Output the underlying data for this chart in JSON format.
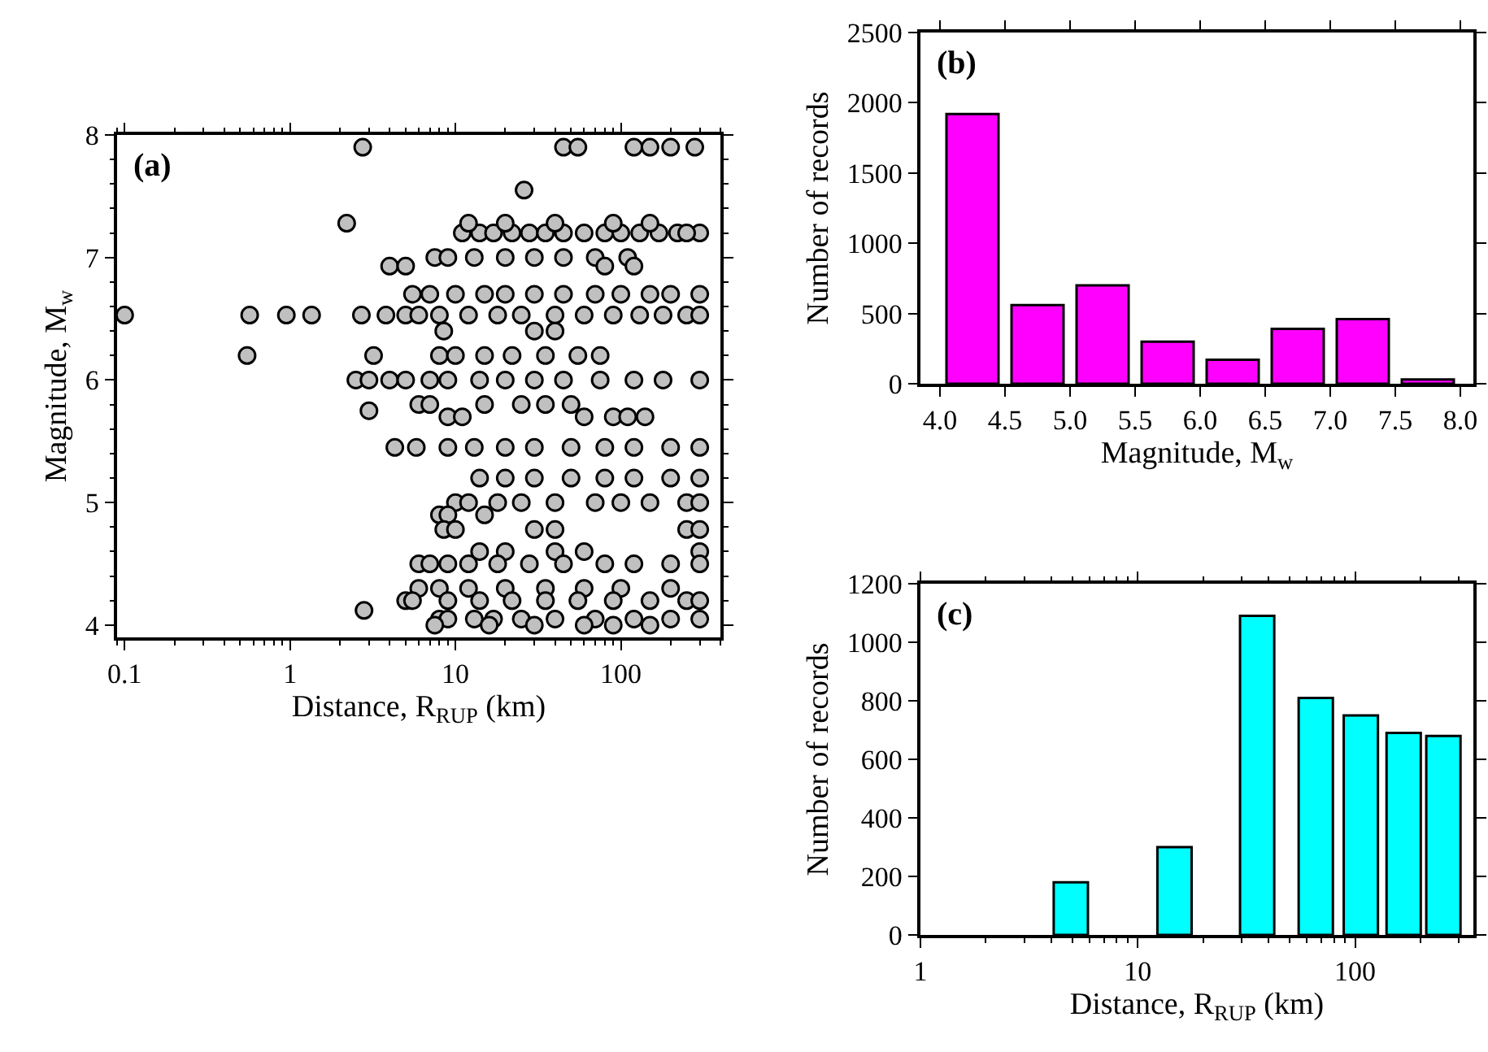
{
  "chart_data": [
    {
      "type": "scatter",
      "annotations": [
        "(a)"
      ],
      "xlabel": "Distance, R$_{RUP}$ (km)",
      "ylabel": "Magnitude, M$_{w}$",
      "log": "x",
      "marker": "circle",
      "xlim": [
        0.09,
        400
      ],
      "xticks": [
        0.1,
        1,
        10,
        100
      ],
      "ylim": [
        3.9,
        8
      ],
      "yticks": [
        4,
        5,
        6,
        7,
        8
      ],
      "series": [
        {
          "color": "#c0c0c0",
          "x": [
            0.1,
            0.55,
            0.57,
            0.95,
            1.35,
            2.7,
            2.2,
            2.75,
            2.8,
            3.0,
            4.3,
            5.8,
            4.0,
            5.0,
            3.8,
            26,
            45,
            55,
            120,
            150,
            200,
            280,
            11,
            14,
            17,
            22,
            28,
            35,
            45,
            60,
            80,
            100,
            130,
            170,
            220,
            300,
            12,
            20,
            40,
            90,
            150,
            250,
            7.5,
            9,
            13,
            20,
            30,
            45,
            70,
            110,
            80,
            120,
            5.5,
            7,
            10,
            15,
            20,
            30,
            45,
            70,
            100,
            150,
            200,
            300,
            5,
            6,
            8,
            12,
            18,
            25,
            40,
            60,
            90,
            130,
            180,
            250,
            300,
            8.5,
            30,
            40,
            3.2,
            8,
            10,
            15,
            22,
            35,
            55,
            75,
            2.5,
            3,
            4,
            5,
            7,
            9,
            14,
            20,
            30,
            45,
            75,
            120,
            180,
            300,
            6,
            7,
            15,
            25,
            35,
            50,
            9,
            11,
            60,
            90,
            110,
            140,
            9,
            13,
            20,
            30,
            50,
            80,
            120,
            200,
            300,
            14,
            20,
            30,
            50,
            80,
            120,
            200,
            300,
            10,
            12,
            18,
            25,
            40,
            70,
            100,
            150,
            250,
            300,
            8,
            9,
            15,
            8.5,
            10,
            30,
            40,
            250,
            300,
            14,
            20,
            40,
            60,
            300,
            6,
            7,
            9,
            12,
            18,
            28,
            45,
            80,
            120,
            200,
            300,
            6,
            8,
            12,
            20,
            35,
            60,
            100,
            200,
            5,
            5.5,
            9,
            14,
            22,
            35,
            55,
            90,
            150,
            250,
            300,
            8,
            9,
            13,
            17,
            25,
            40,
            70,
            120,
            200,
            300,
            7.5,
            16,
            30,
            60,
            90,
            150
          ],
          "values": [
            6.53,
            6.2,
            6.53,
            6.53,
            6.53,
            6.53,
            7.28,
            7.9,
            4.12,
            5.75,
            5.45,
            5.45,
            6.93,
            6.93,
            6.53,
            7.55,
            7.9,
            7.9,
            7.9,
            7.9,
            7.9,
            7.9,
            7.2,
            7.2,
            7.2,
            7.2,
            7.2,
            7.2,
            7.2,
            7.2,
            7.2,
            7.2,
            7.2,
            7.2,
            7.2,
            7.2,
            7.28,
            7.28,
            7.28,
            7.28,
            7.28,
            7.2,
            7.0,
            7.0,
            7.0,
            7.0,
            7.0,
            7.0,
            7.0,
            7.0,
            6.93,
            6.93,
            6.7,
            6.7,
            6.7,
            6.7,
            6.7,
            6.7,
            6.7,
            6.7,
            6.7,
            6.7,
            6.7,
            6.7,
            6.53,
            6.53,
            6.53,
            6.53,
            6.53,
            6.53,
            6.53,
            6.53,
            6.53,
            6.53,
            6.53,
            6.53,
            6.53,
            6.4,
            6.4,
            6.4,
            6.2,
            6.2,
            6.2,
            6.2,
            6.2,
            6.2,
            6.2,
            6.2,
            6.0,
            6.0,
            6.0,
            6.0,
            6.0,
            6.0,
            6.0,
            6.0,
            6.0,
            6.0,
            6.0,
            6.0,
            6.0,
            6.0,
            5.8,
            5.8,
            5.8,
            5.8,
            5.8,
            5.8,
            5.7,
            5.7,
            5.7,
            5.7,
            5.7,
            5.7,
            5.45,
            5.45,
            5.45,
            5.45,
            5.45,
            5.45,
            5.45,
            5.45,
            5.45,
            5.2,
            5.2,
            5.2,
            5.2,
            5.2,
            5.2,
            5.2,
            5.2,
            5.0,
            5.0,
            5.0,
            5.0,
            5.0,
            5.0,
            5.0,
            5.0,
            5.0,
            5.0,
            4.9,
            4.9,
            4.9,
            4.78,
            4.78,
            4.78,
            4.78,
            4.78,
            4.78,
            4.6,
            4.6,
            4.6,
            4.6,
            4.6,
            4.5,
            4.5,
            4.5,
            4.5,
            4.5,
            4.5,
            4.5,
            4.5,
            4.5,
            4.5,
            4.5,
            4.3,
            4.3,
            4.3,
            4.3,
            4.3,
            4.3,
            4.3,
            4.3,
            4.2,
            4.2,
            4.2,
            4.2,
            4.2,
            4.2,
            4.2,
            4.2,
            4.2,
            4.2,
            4.2,
            4.05,
            4.05,
            4.05,
            4.05,
            4.05,
            4.05,
            4.05,
            4.05,
            4.05,
            4.05,
            4.0,
            4.0,
            4.0,
            4.0,
            4.0,
            4.0
          ]
        }
      ]
    },
    {
      "type": "histogram",
      "annotations": [
        "(b)"
      ],
      "xlabel": "Magnitude, M$_{w}$",
      "ylabel": "Number of records",
      "bins": [
        4.0,
        4.5,
        5.0,
        5.5,
        6.0,
        6.5,
        7.0,
        7.5,
        8.0
      ],
      "values": [
        1920,
        560,
        700,
        300,
        170,
        390,
        460,
        30
      ],
      "color": "#ff00ff",
      "xlim": [
        3.85,
        8.1
      ],
      "xticks": [
        {
          "value": 4,
          "label": "4.0"
        },
        4.5,
        {
          "value": 5,
          "label": "5.0"
        },
        5.5,
        {
          "value": 6,
          "label": "6.0"
        },
        6.5,
        {
          "value": 7,
          "label": "7.0"
        },
        7.5,
        {
          "value": 8,
          "label": "8.0"
        }
      ],
      "ylim": [
        0,
        2500
      ],
      "yticks": [
        0,
        500,
        1000,
        1500,
        2000,
        2500
      ]
    },
    {
      "type": "bar",
      "annotations": [
        "(c)"
      ],
      "xlabel": "Distance, R$_{RUP}$ (km)",
      "ylabel": "Number of records",
      "log": "x",
      "x": [
        5,
        15,
        36,
        67,
        108,
        170,
        259
      ],
      "values": [
        180,
        300,
        1090,
        810,
        750,
        690,
        680
      ],
      "color": "#00ffff",
      "xlim": [
        1,
        350
      ],
      "xticks": [
        1,
        10,
        100
      ],
      "ylim": [
        0,
        1200
      ],
      "yticks": [
        0,
        200,
        400,
        600,
        800,
        1000,
        1200
      ]
    }
  ]
}
